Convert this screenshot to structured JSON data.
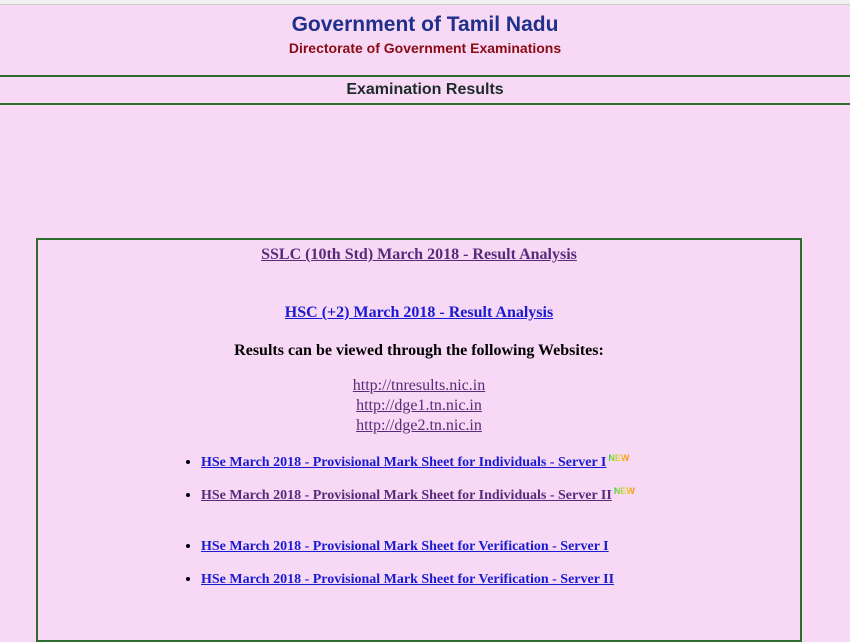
{
  "header": {
    "title": "Government of Tamil Nadu",
    "subtitle": "Directorate of Government Examinations"
  },
  "section_title": "Examination Results",
  "main": {
    "sslc_link": "SSLC (10th Std) March 2018 - Result Analysis",
    "hsc_link": "HSC (+2) March 2018 - Result Analysis",
    "websites_heading": "Results can be viewed through the following Websites:",
    "websites": [
      "http://tnresults.nic.in",
      "http://dge1.tn.nic.in",
      "http://dge2.tn.nic.in"
    ],
    "links": [
      {
        "label": "HSe March 2018 - Provisional Mark Sheet for Individuals - Server I",
        "badge": "NEW"
      },
      {
        "label": "HSe March 2018 - Provisional Mark Sheet for Individuals - Server II",
        "badge": "NEW"
      },
      {
        "label": "HSe March 2018 - Provisional Mark Sheet for Verification - Server I"
      },
      {
        "label": "HSe March 2018 - Provisional Mark Sheet for Verification - Server II"
      }
    ]
  }
}
